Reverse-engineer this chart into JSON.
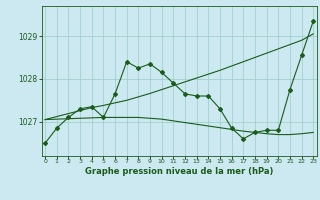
{
  "title": "Graphe pression niveau de la mer (hPa)",
  "background_color": "#cce8f0",
  "grid_color": "#99ccc4",
  "line_color": "#1a5c1a",
  "x_labels": [
    "0",
    "1",
    "2",
    "3",
    "4",
    "5",
    "6",
    "7",
    "8",
    "9",
    "10",
    "11",
    "12",
    "13",
    "14",
    "15",
    "16",
    "17",
    "18",
    "19",
    "20",
    "21",
    "22",
    "23"
  ],
  "ylim": [
    1026.2,
    1029.7
  ],
  "yticks": [
    1027,
    1028,
    1029
  ],
  "series": {
    "line1": [
      1026.5,
      1026.85,
      1027.1,
      1027.3,
      1027.35,
      1027.1,
      1027.65,
      1028.4,
      1028.25,
      1028.35,
      1028.15,
      1027.9,
      1027.65,
      1027.6,
      1027.6,
      1027.3,
      1026.85,
      1026.6,
      1026.75,
      1026.8,
      1026.8,
      1027.75,
      1028.55,
      1029.35
    ],
    "line2_flat": [
      1027.05,
      1027.06,
      1027.07,
      1027.08,
      1027.09,
      1027.1,
      1027.1,
      1027.1,
      1027.1,
      1027.08,
      1027.06,
      1027.02,
      1026.98,
      1026.94,
      1026.9,
      1026.86,
      1026.82,
      1026.78,
      1026.75,
      1026.72,
      1026.7,
      1026.7,
      1026.72,
      1026.75
    ],
    "line3_trend": [
      1027.05,
      1027.12,
      1027.19,
      1027.26,
      1027.33,
      1027.38,
      1027.44,
      1027.5,
      1027.58,
      1027.66,
      1027.75,
      1027.84,
      1027.93,
      1028.02,
      1028.11,
      1028.2,
      1028.3,
      1028.4,
      1028.5,
      1028.6,
      1028.7,
      1028.8,
      1028.9,
      1029.05
    ]
  }
}
